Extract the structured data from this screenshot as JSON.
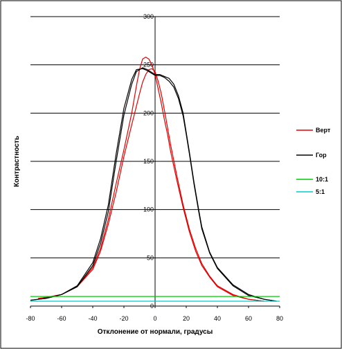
{
  "chart_data": {
    "type": "line",
    "title": "",
    "xlabel": "Отклонение от нормали, градусы",
    "ylabel": "Контрастность",
    "xlim": [
      -80,
      80
    ],
    "ylim": [
      0,
      300
    ],
    "xticks": [
      "-80",
      "-60",
      "-40",
      "-20",
      "0",
      "20",
      "40",
      "60",
      "80"
    ],
    "yticks": [
      "0",
      "50",
      "100",
      "150",
      "200",
      "250",
      "300"
    ],
    "grid": "horizontal",
    "legend_position": "right",
    "series": [
      {
        "name": "Верт",
        "color": "#e00000",
        "x": [
          -75,
          -70,
          -60,
          -50,
          -40,
          -35,
          -30,
          -25,
          -20,
          -15,
          -12,
          -10,
          -8,
          -6,
          -4,
          -2,
          0,
          2,
          4,
          6,
          8,
          10,
          14,
          18,
          22,
          26,
          30,
          35,
          40,
          50,
          60,
          70
        ],
        "y": [
          8,
          9,
          12,
          20,
          40,
          60,
          90,
          127,
          162,
          200,
          228,
          245,
          256,
          258,
          256,
          250,
          240,
          225,
          210,
          193,
          178,
          160,
          130,
          102,
          77,
          57,
          42,
          30,
          20,
          11,
          7,
          5
        ]
      },
      {
        "name": "Верт",
        "color": "#e00000",
        "x": [
          -75,
          -70,
          -60,
          -50,
          -40,
          -35,
          -30,
          -25,
          -20,
          -15,
          -10,
          -8,
          -6,
          -4,
          -2,
          0,
          2,
          4,
          6,
          8,
          10,
          14,
          18,
          22,
          26,
          30,
          35,
          40,
          50,
          60,
          70
        ],
        "y": [
          8,
          9,
          12,
          20,
          38,
          57,
          85,
          118,
          155,
          188,
          220,
          232,
          240,
          245,
          246,
          243,
          233,
          220,
          203,
          185,
          167,
          135,
          105,
          80,
          60,
          44,
          31,
          21,
          12,
          7,
          5
        ]
      },
      {
        "name": "Гор",
        "color": "#000000",
        "x": [
          -80,
          -75,
          -70,
          -60,
          -50,
          -40,
          -35,
          -30,
          -25,
          -20,
          -15,
          -12,
          -8,
          -5,
          -2,
          0,
          3,
          6,
          9,
          12,
          15,
          18,
          20,
          22,
          25,
          28,
          30,
          35,
          40,
          50,
          60,
          70,
          78
        ],
        "y": [
          6,
          7,
          8,
          12,
          20,
          42,
          65,
          98,
          150,
          198,
          230,
          243,
          247,
          245,
          242,
          240,
          240,
          238,
          236,
          230,
          218,
          200,
          180,
          160,
          128,
          100,
          82,
          56,
          40,
          22,
          12,
          7,
          5
        ]
      },
      {
        "name": "Гор",
        "color": "#000000",
        "x": [
          -80,
          -75,
          -70,
          -60,
          -50,
          -40,
          -35,
          -30,
          -25,
          -20,
          -15,
          -12,
          -8,
          -5,
          -2,
          0,
          3,
          6,
          9,
          12,
          15,
          18,
          20,
          22,
          25,
          28,
          30,
          35,
          40,
          50,
          60,
          70,
          78
        ],
        "y": [
          6,
          7,
          8,
          12,
          21,
          45,
          70,
          105,
          158,
          205,
          235,
          245,
          246,
          244,
          241,
          239,
          239,
          237,
          233,
          227,
          215,
          197,
          178,
          158,
          126,
          98,
          80,
          55,
          39,
          21,
          11,
          7,
          5
        ]
      },
      {
        "name": "10:1",
        "color": "#00cc00",
        "x": [
          -80,
          80
        ],
        "y": [
          10,
          10
        ]
      },
      {
        "name": "5:1",
        "color": "#00cccc",
        "x": [
          -80,
          80
        ],
        "y": [
          5,
          5
        ]
      }
    ],
    "legend": [
      {
        "label": "Верт",
        "color": "#e00000"
      },
      {
        "label": "Гор",
        "color": "#000000"
      },
      {
        "label": "10:1",
        "color": "#00cc00"
      },
      {
        "label": "5:1",
        "color": "#00cccc"
      }
    ]
  }
}
